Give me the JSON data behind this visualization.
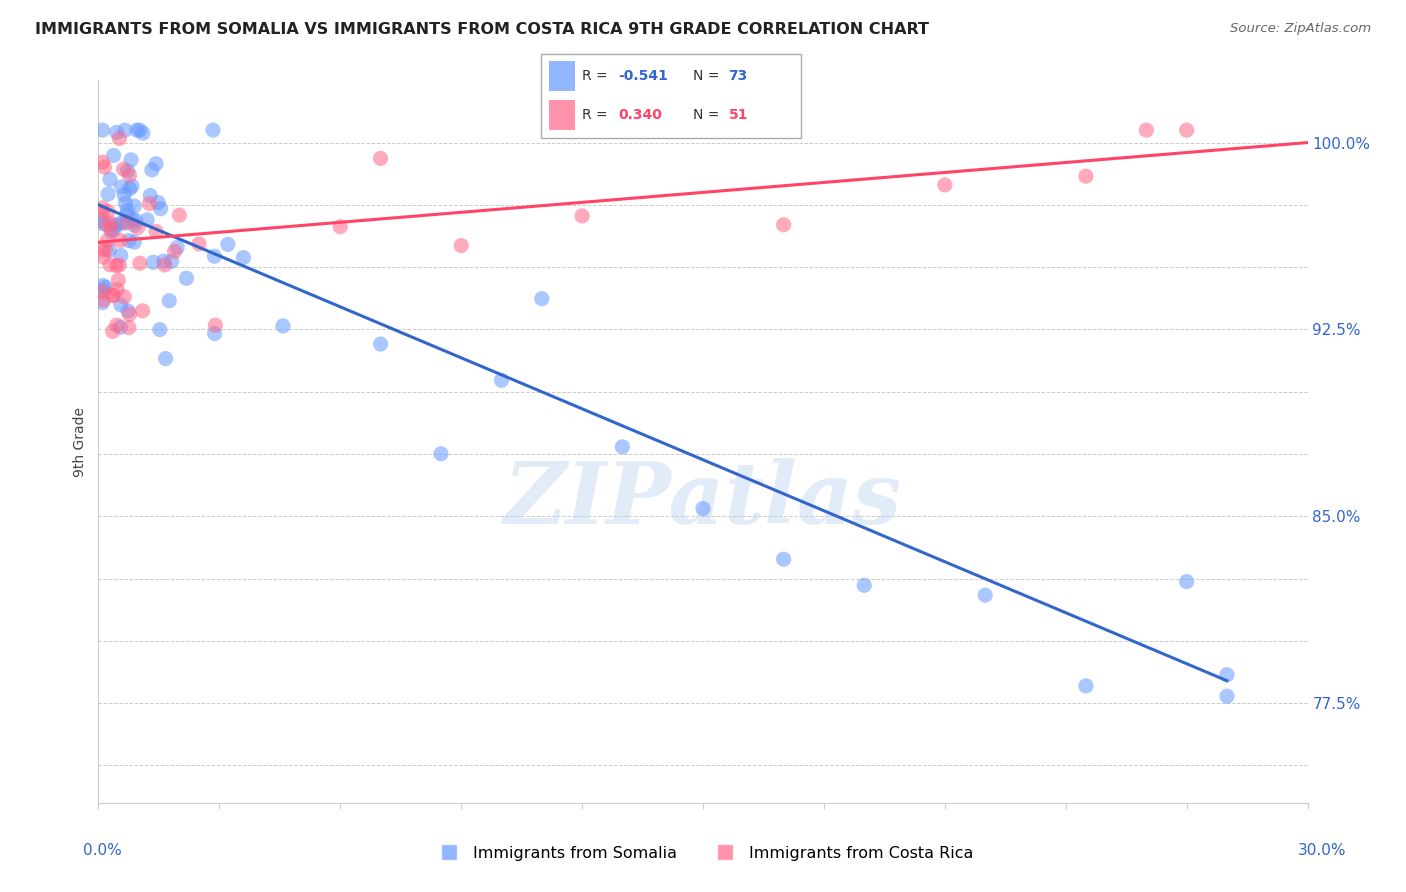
{
  "title": "IMMIGRANTS FROM SOMALIA VS IMMIGRANTS FROM COSTA RICA 9TH GRADE CORRELATION CHART",
  "source": "Source: ZipAtlas.com",
  "ylabel": "9th Grade",
  "watermark": "ZIPatlas",
  "legend_R_somalia": "-0.541",
  "legend_N_somalia": "73",
  "legend_R_costarica": "0.340",
  "legend_N_costarica": "51",
  "somalia_color": "#6699ff",
  "costarica_color": "#ff6688",
  "somalia_line_color": "#3366cc",
  "costarica_line_color": "#ff4466",
  "ylim": [
    0.735,
    1.025
  ],
  "xlim": [
    0.0,
    0.3
  ],
  "ytick_positions": [
    0.775,
    0.85,
    0.925,
    1.0
  ],
  "ytick_labels": [
    "77.5%",
    "85.0%",
    "92.5%",
    "100.0%"
  ],
  "ytick_minor": [
    0.75,
    0.775,
    0.8,
    0.825,
    0.85,
    0.875,
    0.9,
    0.925,
    0.95,
    0.975,
    1.0
  ],
  "somalia_line_x0": 0.0,
  "somalia_line_y0": 0.975,
  "somalia_line_x1": 0.28,
  "somalia_line_y1": 0.784,
  "costarica_line_x0": 0.0,
  "costarica_line_y0": 0.96,
  "costarica_line_x1": 0.3,
  "costarica_line_y1": 1.0,
  "background_color": "#ffffff",
  "grid_color": "#cccccc"
}
